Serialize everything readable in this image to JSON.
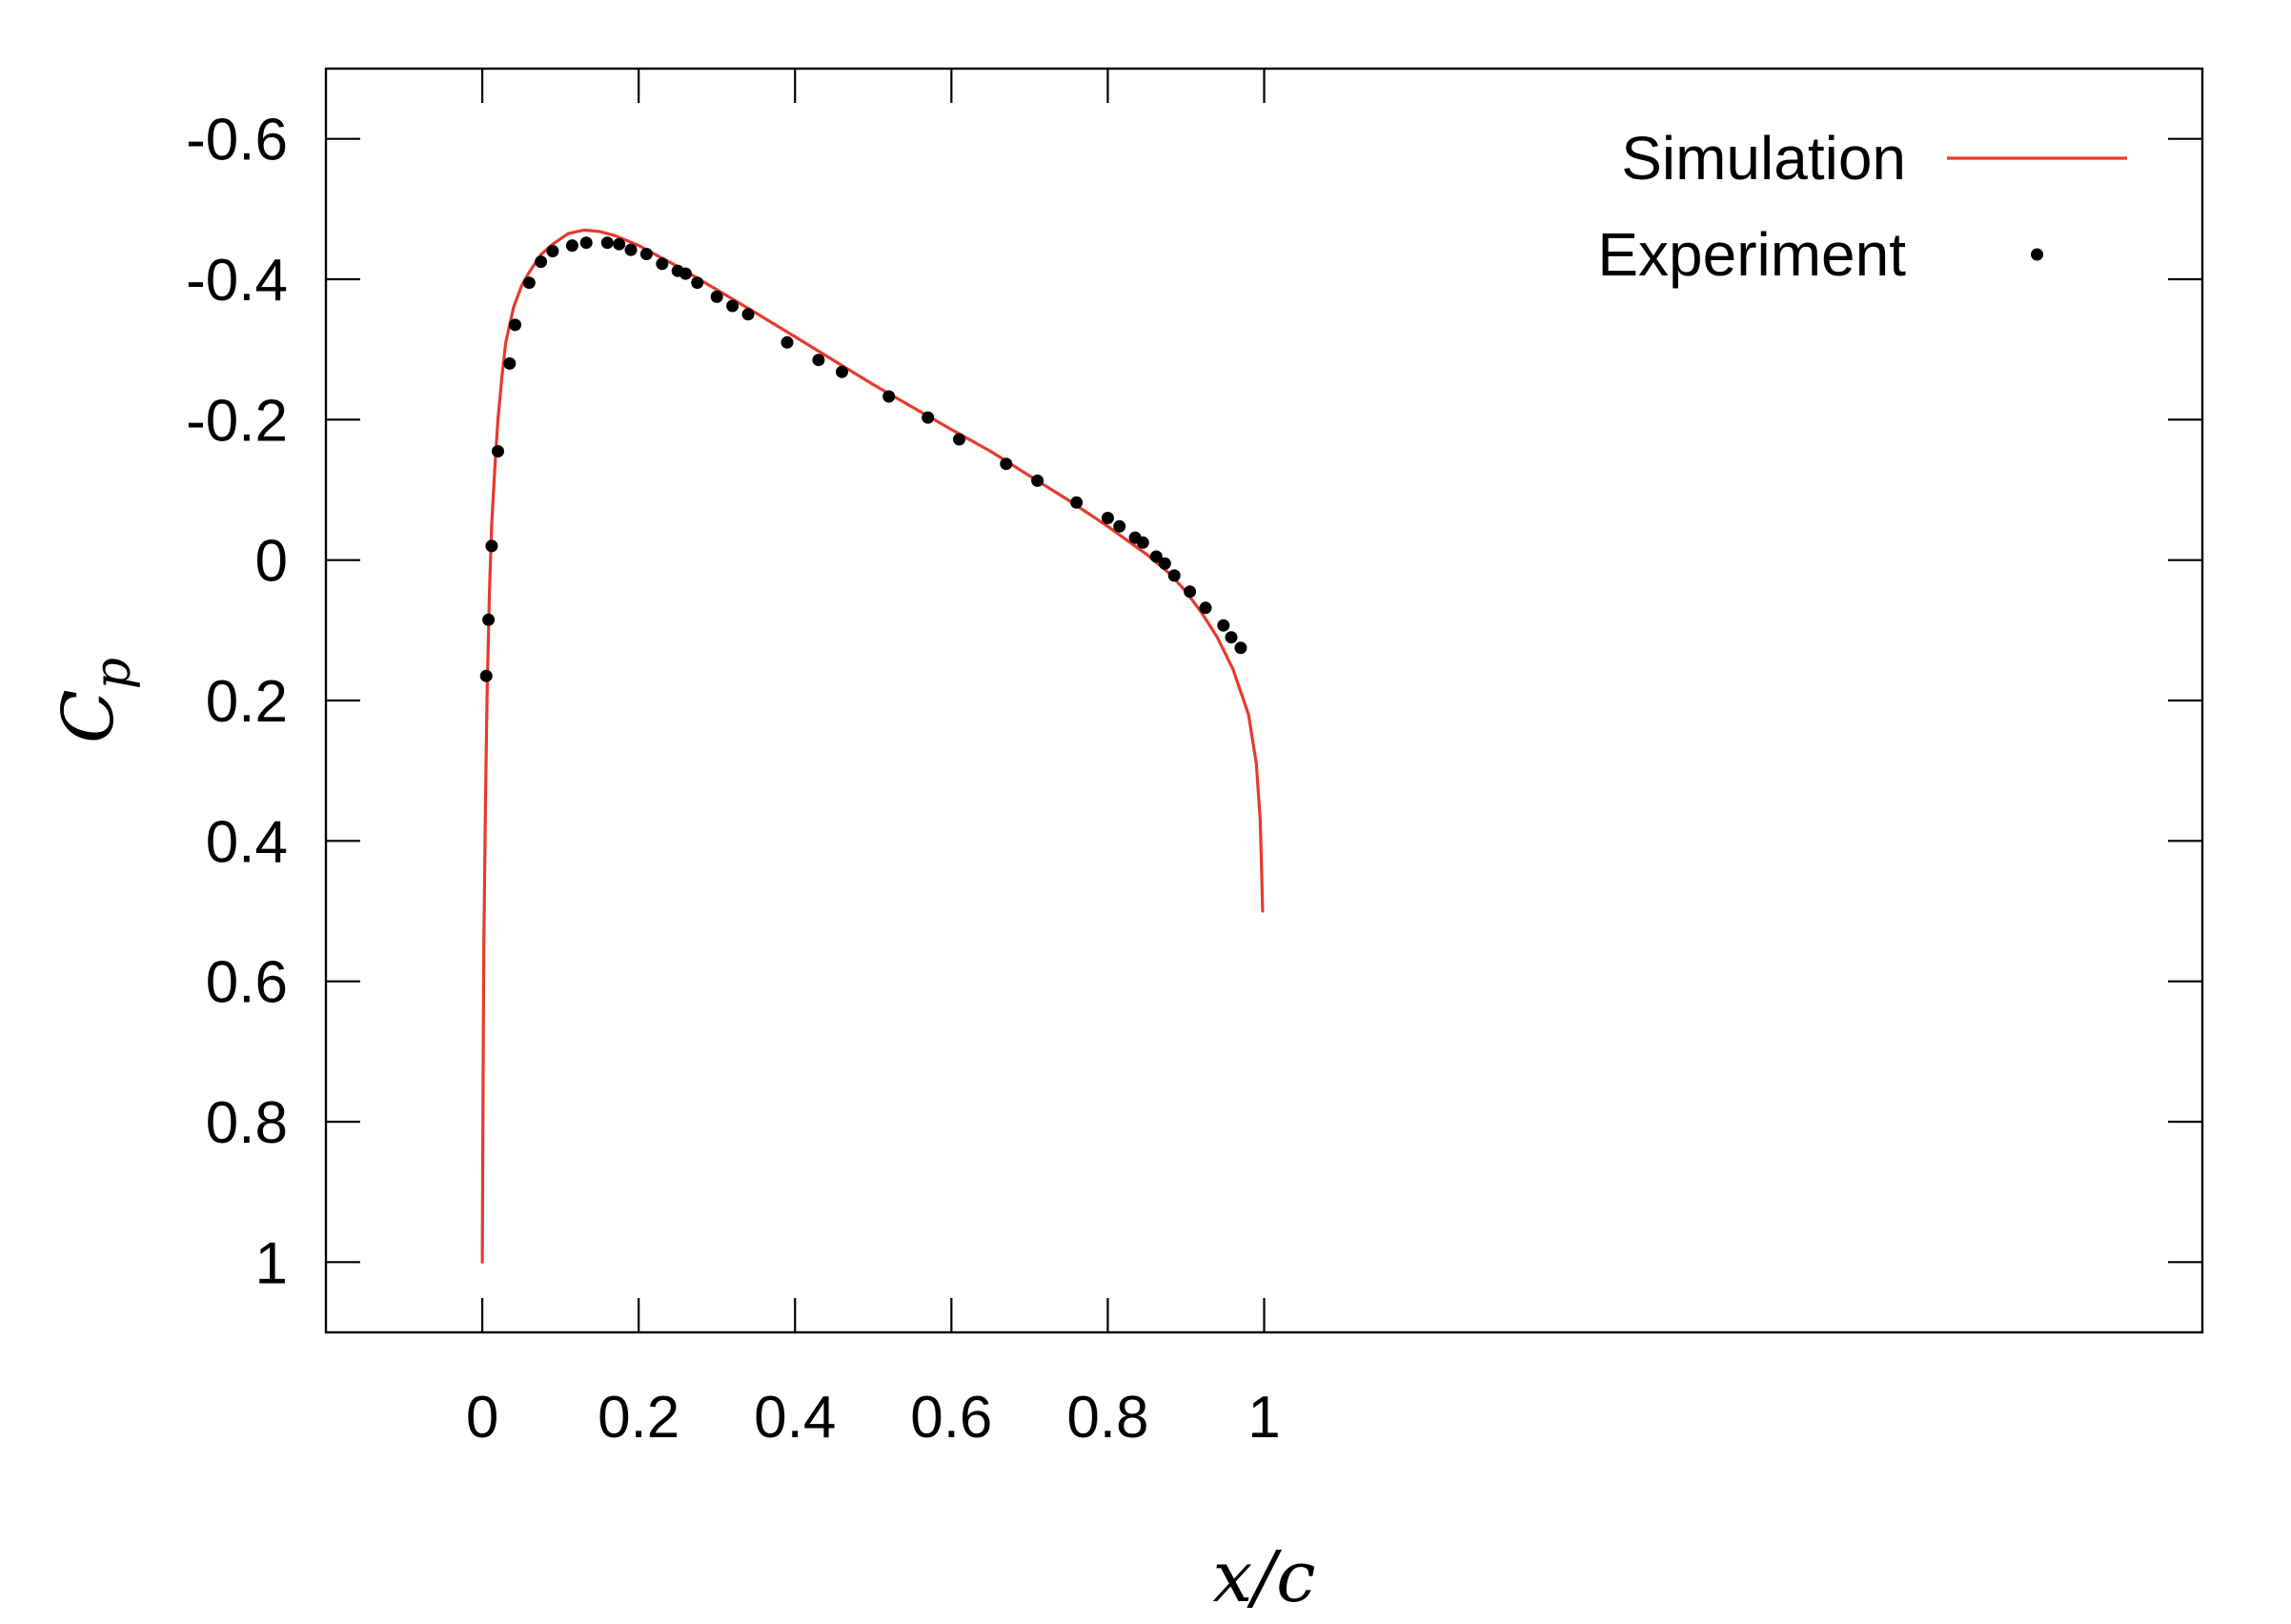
{
  "chart_data": {
    "type": "line",
    "title": "",
    "xlabel": "x/c",
    "ylabel": "Cp",
    "ylabel_main": "C",
    "ylabel_sub": "p",
    "xlim": [
      -0.2,
      2.2
    ],
    "ylim_display": [
      1.1,
      -0.7
    ],
    "y_axis_inverted": true,
    "x_ticks": [
      0,
      0.2,
      0.4,
      0.6,
      0.8,
      1
    ],
    "x_tick_labels": [
      "0",
      "0.2",
      "0.4",
      "0.6",
      "0.8",
      "1"
    ],
    "y_ticks": [
      -0.6,
      -0.4,
      -0.2,
      0,
      0.2,
      0.4,
      0.6,
      0.8,
      1
    ],
    "y_tick_labels": [
      "-0.6",
      "-0.4",
      "-0.2",
      "0",
      "0.2",
      "0.4",
      "0.6",
      "0.8",
      "1"
    ],
    "grid": false,
    "legend_position": "top-right",
    "series": [
      {
        "name": "Simulation",
        "kind": "line",
        "color": "#e8392e",
        "points": [
          [
            0.0,
            1.0
          ],
          [
            0.001,
            0.75
          ],
          [
            0.002,
            0.55
          ],
          [
            0.004,
            0.35
          ],
          [
            0.006,
            0.2
          ],
          [
            0.009,
            0.05
          ],
          [
            0.012,
            -0.05
          ],
          [
            0.016,
            -0.13
          ],
          [
            0.02,
            -0.2
          ],
          [
            0.025,
            -0.26
          ],
          [
            0.03,
            -0.31
          ],
          [
            0.04,
            -0.36
          ],
          [
            0.05,
            -0.39
          ],
          [
            0.06,
            -0.41
          ],
          [
            0.075,
            -0.435
          ],
          [
            0.09,
            -0.45
          ],
          [
            0.11,
            -0.465
          ],
          [
            0.13,
            -0.47
          ],
          [
            0.15,
            -0.468
          ],
          [
            0.17,
            -0.462
          ],
          [
            0.2,
            -0.448
          ],
          [
            0.25,
            -0.418
          ],
          [
            0.3,
            -0.385
          ],
          [
            0.35,
            -0.352
          ],
          [
            0.4,
            -0.318
          ],
          [
            0.45,
            -0.284
          ],
          [
            0.5,
            -0.25
          ],
          [
            0.55,
            -0.218
          ],
          [
            0.6,
            -0.186
          ],
          [
            0.65,
            -0.155
          ],
          [
            0.7,
            -0.12
          ],
          [
            0.75,
            -0.085
          ],
          [
            0.8,
            -0.048
          ],
          [
            0.85,
            -0.008
          ],
          [
            0.88,
            0.02
          ],
          [
            0.9,
            0.045
          ],
          [
            0.92,
            0.075
          ],
          [
            0.94,
            0.11
          ],
          [
            0.96,
            0.155
          ],
          [
            0.98,
            0.22
          ],
          [
            0.99,
            0.29
          ],
          [
            0.995,
            0.37
          ],
          [
            0.997,
            0.45
          ],
          [
            0.998,
            0.5
          ]
        ]
      },
      {
        "name": "Experiment",
        "kind": "scatter",
        "color": "#000000",
        "points": [
          [
            0.005,
            0.165
          ],
          [
            0.008,
            0.085
          ],
          [
            0.012,
            -0.02
          ],
          [
            0.02,
            -0.155
          ],
          [
            0.035,
            -0.28
          ],
          [
            0.042,
            -0.335
          ],
          [
            0.06,
            -0.395
          ],
          [
            0.075,
            -0.425
          ],
          [
            0.09,
            -0.44
          ],
          [
            0.115,
            -0.448
          ],
          [
            0.133,
            -0.452
          ],
          [
            0.16,
            -0.452
          ],
          [
            0.175,
            -0.45
          ],
          [
            0.19,
            -0.442
          ],
          [
            0.21,
            -0.436
          ],
          [
            0.23,
            -0.422
          ],
          [
            0.25,
            -0.412
          ],
          [
            0.26,
            -0.408
          ],
          [
            0.275,
            -0.395
          ],
          [
            0.3,
            -0.375
          ],
          [
            0.32,
            -0.362
          ],
          [
            0.34,
            -0.35
          ],
          [
            0.39,
            -0.31
          ],
          [
            0.43,
            -0.285
          ],
          [
            0.46,
            -0.268
          ],
          [
            0.52,
            -0.233
          ],
          [
            0.57,
            -0.203
          ],
          [
            0.61,
            -0.172
          ],
          [
            0.67,
            -0.137
          ],
          [
            0.71,
            -0.113
          ],
          [
            0.76,
            -0.082
          ],
          [
            0.8,
            -0.06
          ],
          [
            0.815,
            -0.048
          ],
          [
            0.835,
            -0.032
          ],
          [
            0.845,
            -0.025
          ],
          [
            0.862,
            -0.005
          ],
          [
            0.873,
            0.005
          ],
          [
            0.885,
            0.022
          ],
          [
            0.905,
            0.045
          ],
          [
            0.925,
            0.068
          ],
          [
            0.948,
            0.093
          ],
          [
            0.958,
            0.11
          ],
          [
            0.97,
            0.125
          ]
        ]
      }
    ]
  }
}
